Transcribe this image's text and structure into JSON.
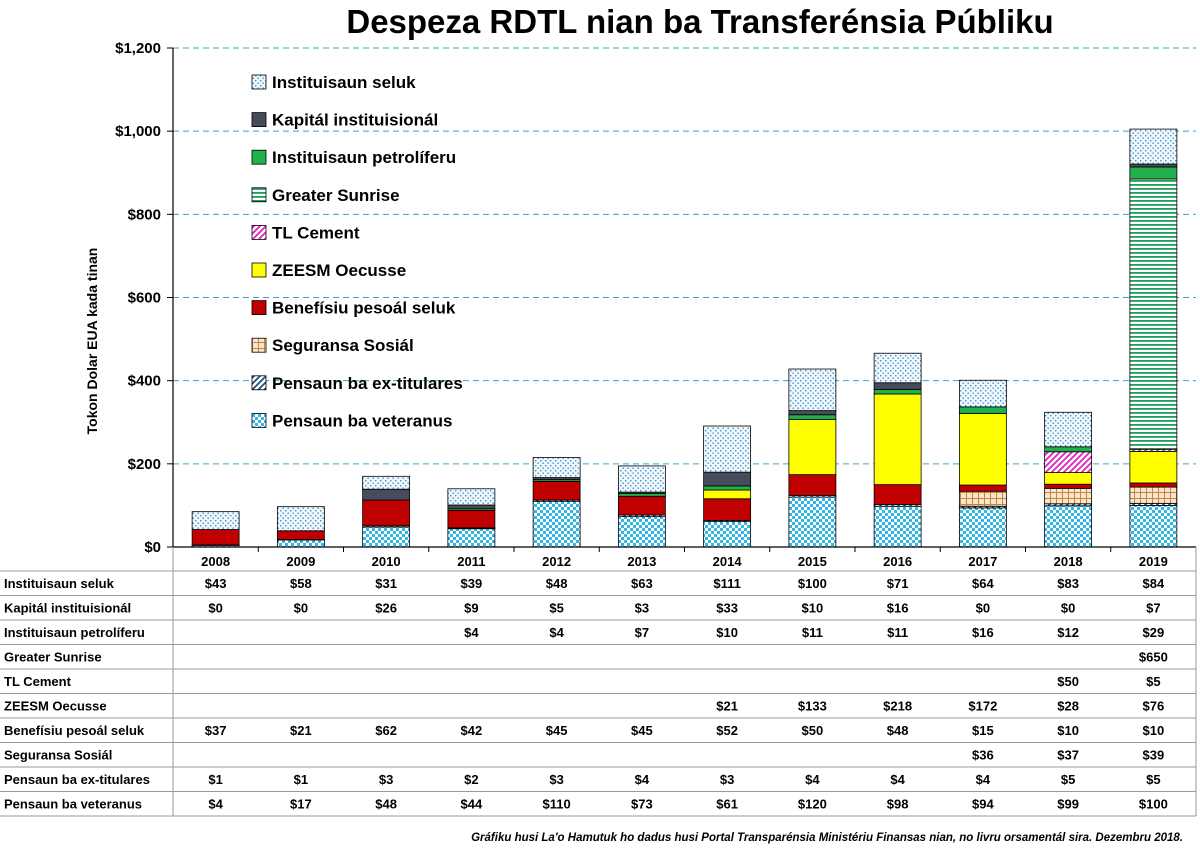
{
  "chart_data": {
    "type": "bar",
    "stacked": true,
    "title": "Despeza RDTL nian ba Transferénsia Públiku",
    "ylabel": "Tokon Dolar EUA kada tinan",
    "ylim": [
      0,
      1200
    ],
    "yticks": [
      0,
      200,
      400,
      600,
      800,
      1000,
      1200
    ],
    "ytick_labels": [
      "$0",
      "$200",
      "$400",
      "$600",
      "$800",
      "$1,000",
      "$1,200"
    ],
    "grid": "horizontal dashed",
    "legend_position": "top-left",
    "categories": [
      "2008",
      "2009",
      "2010",
      "2011",
      "2012",
      "2013",
      "2014",
      "2015",
      "2016",
      "2017",
      "2018",
      "2019"
    ],
    "series": [
      {
        "name": "Pensaun ba veteranus",
        "color": "#33b5e5",
        "pattern": "checker",
        "values": [
          4,
          17,
          48,
          44,
          110,
          73,
          61,
          120,
          98,
          94,
          99,
          100
        ],
        "labels": [
          "$4",
          "$17",
          "$48",
          "$44",
          "$110",
          "$73",
          "$61",
          "$120",
          "$98",
          "$94",
          "$99",
          "$100"
        ]
      },
      {
        "name": "Pensaun ba ex-titulares",
        "color": "#1f4e79",
        "pattern": "diagonal",
        "values": [
          1,
          1,
          3,
          2,
          3,
          4,
          3,
          4,
          4,
          4,
          5,
          5
        ],
        "labels": [
          "$1",
          "$1",
          "$3",
          "$2",
          "$3",
          "$4",
          "$3",
          "$4",
          "$4",
          "$4",
          "$5",
          "$5"
        ]
      },
      {
        "name": "Seguransa Sosiál",
        "color": "#c8843a",
        "pattern": "grid",
        "values": [
          null,
          null,
          null,
          null,
          null,
          null,
          null,
          null,
          null,
          36,
          37,
          39
        ],
        "labels": [
          "",
          "",
          "",
          "",
          "",
          "",
          "",
          "",
          "",
          "$36",
          "$37",
          "$39"
        ]
      },
      {
        "name": "Benefísiu pesoál seluk",
        "color": "#c00000",
        "pattern": "solid",
        "values": [
          37,
          21,
          62,
          42,
          45,
          45,
          52,
          50,
          48,
          15,
          10,
          10
        ],
        "labels": [
          "$37",
          "$21",
          "$62",
          "$42",
          "$45",
          "$45",
          "$52",
          "$50",
          "$48",
          "$15",
          "$10",
          "$10"
        ]
      },
      {
        "name": "ZEESM Oecusse",
        "color": "#ffff00",
        "pattern": "solid",
        "values": [
          null,
          null,
          null,
          null,
          null,
          null,
          21,
          133,
          218,
          172,
          28,
          76
        ],
        "labels": [
          "",
          "",
          "",
          "",
          "",
          "",
          "$21",
          "$133",
          "$218",
          "$172",
          "$28",
          "$76"
        ]
      },
      {
        "name": "TL Cement",
        "color": "#e020c0",
        "pattern": "diagonal",
        "values": [
          null,
          null,
          null,
          null,
          null,
          null,
          null,
          null,
          null,
          null,
          50,
          5
        ],
        "labels": [
          "",
          "",
          "",
          "",
          "",
          "",
          "",
          "",
          "",
          "",
          "$50",
          "$5"
        ]
      },
      {
        "name": "Greater Sunrise",
        "color": "#1e9e5a",
        "pattern": "hstripes",
        "values": [
          null,
          null,
          null,
          null,
          null,
          null,
          null,
          null,
          null,
          null,
          null,
          650
        ],
        "labels": [
          "",
          "",
          "",
          "",
          "",
          "",
          "",
          "",
          "",
          "",
          "",
          "$650"
        ]
      },
      {
        "name": "Instituisaun petrolíferu",
        "color": "#22b04c",
        "pattern": "solid",
        "values": [
          null,
          null,
          null,
          4,
          4,
          7,
          10,
          11,
          11,
          16,
          12,
          29
        ],
        "labels": [
          "",
          "",
          "",
          "$4",
          "$4",
          "$7",
          "$10",
          "$11",
          "$11",
          "$16",
          "$12",
          "$29"
        ]
      },
      {
        "name": "Kapitál instituisionál",
        "color": "#464c5a",
        "pattern": "solid",
        "values": [
          0,
          0,
          26,
          9,
          5,
          3,
          33,
          10,
          16,
          0,
          0,
          7
        ],
        "labels": [
          "$0",
          "$0",
          "$26",
          "$9",
          "$5",
          "$3",
          "$33",
          "$10",
          "$16",
          "$0",
          "$0",
          "$7"
        ]
      },
      {
        "name": "Instituisaun seluk",
        "color": "#8cc4e0",
        "pattern": "dots",
        "values": [
          43,
          58,
          31,
          39,
          48,
          63,
          111,
          100,
          71,
          64,
          83,
          84
        ],
        "labels": [
          "$43",
          "$58",
          "$31",
          "$39",
          "$48",
          "$63",
          "$111",
          "$100",
          "$71",
          "$64",
          "$83",
          "$84"
        ]
      }
    ],
    "source_note": "Gráfiku husi La'o Hamutuk ho dadus husi Portal Transparénsia Ministériu Finansas nian, no livru orsamentál sira. Dezembru 2018."
  }
}
